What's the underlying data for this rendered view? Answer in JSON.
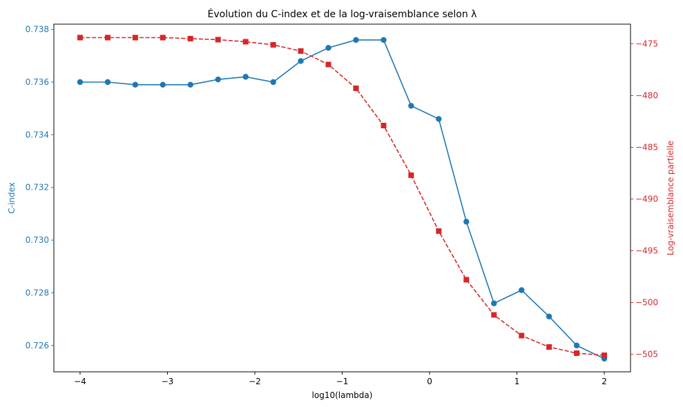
{
  "chart_data": {
    "type": "line",
    "title": "Évolution du C-index et de la log-vraisemblance selon λ",
    "xlabel": "log10(lambda)",
    "xlim": [
      -4.3,
      2.3
    ],
    "x_ticks": [
      -4,
      -3,
      -2,
      -1,
      0,
      1,
      2
    ],
    "x_tick_labels": [
      "−4",
      "−3",
      "−2",
      "−1",
      "0",
      "1",
      "2"
    ],
    "x": [
      -4.0,
      -3.684,
      -3.368,
      -3.053,
      -2.737,
      -2.421,
      -2.105,
      -1.789,
      -1.474,
      -1.158,
      -0.842,
      -0.526,
      -0.211,
      0.105,
      0.421,
      0.737,
      1.053,
      1.368,
      1.684,
      2.0
    ],
    "y_left": {
      "label": "C-index",
      "color": "#1f77b4",
      "lim": [
        0.725,
        0.7382
      ],
      "ticks": [
        0.726,
        0.728,
        0.73,
        0.732,
        0.734,
        0.736,
        0.738
      ],
      "tick_labels": [
        "0.726",
        "0.728",
        "0.730",
        "0.732",
        "0.734",
        "0.736",
        "0.738"
      ]
    },
    "y_right": {
      "label": "Log-vraisemblance partielle",
      "color": "#d62728",
      "lim": [
        -506.7,
        -473.1
      ],
      "ticks": [
        -505,
        -500,
        -495,
        -490,
        -485,
        -480,
        -475
      ],
      "tick_labels": [
        "−505",
        "−500",
        "−495",
        "−490",
        "−485",
        "−480",
        "−475"
      ]
    },
    "series": [
      {
        "axis": "left",
        "color": "#1f77b4",
        "linestyle": "solid",
        "marker": "circle",
        "values": [
          0.736,
          0.736,
          0.7359,
          0.7359,
          0.7359,
          0.7361,
          0.7362,
          0.736,
          0.7368,
          0.7373,
          0.7376,
          0.7376,
          0.7351,
          0.7346,
          0.7307,
          0.7276,
          0.7281,
          0.7271,
          0.726,
          0.7255
        ]
      },
      {
        "axis": "right",
        "color": "#d62728",
        "linestyle": "dashed",
        "marker": "square",
        "values": [
          -474.4,
          -474.4,
          -474.4,
          -474.4,
          -474.5,
          -474.6,
          -474.8,
          -475.1,
          -475.7,
          -477.0,
          -479.3,
          -482.9,
          -487.7,
          -493.1,
          -497.8,
          -501.2,
          -503.2,
          -504.3,
          -504.9,
          -505.1
        ]
      }
    ],
    "grid": false,
    "legend": "none"
  }
}
